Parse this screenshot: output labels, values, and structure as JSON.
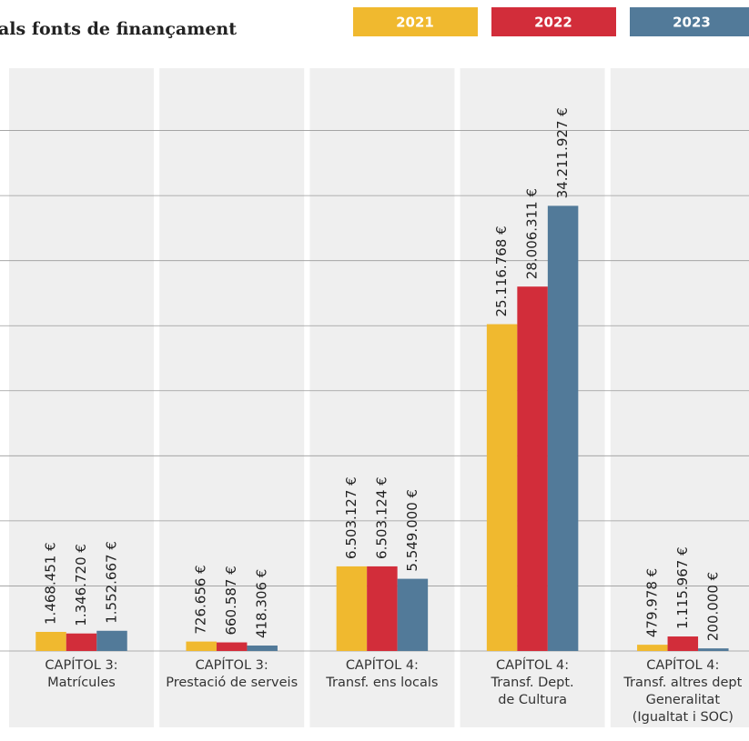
{
  "chart_data": {
    "type": "bar",
    "title": "als fonts de finançament",
    "categories": [
      "CAPÍTOL 3:\nMatrícules",
      "CAPÍTOL 3:\nPrestació de serveis",
      "CAPÍTOL 4:\nTransf. ens locals",
      "CAPÍTOL 4:\nTransf. Dept.\nde Cultura",
      "CAPÍTOL 4:\nTransf. altres dept\nGeneralitat\n(Igualtat i SOC)"
    ],
    "series": [
      {
        "name": "2021",
        "color": "#f0b92f",
        "values": [
          1468451,
          726656,
          6503127,
          25116768,
          479978
        ],
        "value_labels": [
          "1.468.451 €",
          "726.656 €",
          "6.503.127 €",
          "25.116.768 €",
          "479.978 €"
        ]
      },
      {
        "name": "2022",
        "color": "#d22d3a",
        "values": [
          1346720,
          660587,
          6503124,
          28006311,
          1115967
        ],
        "value_labels": [
          "1.346.720 €",
          "660.587 €",
          "6.503.124 €",
          "28.006.311 €",
          "1.115.967 €"
        ]
      },
      {
        "name": "2023",
        "color": "#527a99",
        "values": [
          1552667,
          418306,
          5549000,
          34211927,
          200000
        ],
        "value_labels": [
          "1.552.667 €",
          "418.306 €",
          "5.549.000 €",
          "34.211.927 €",
          "200.000 €"
        ]
      }
    ],
    "ylim": [
      0,
      45000000
    ],
    "yticks": [
      0,
      5000000,
      10000000,
      15000000,
      20000000,
      25000000,
      30000000,
      35000000,
      40000000
    ],
    "grid": true
  }
}
